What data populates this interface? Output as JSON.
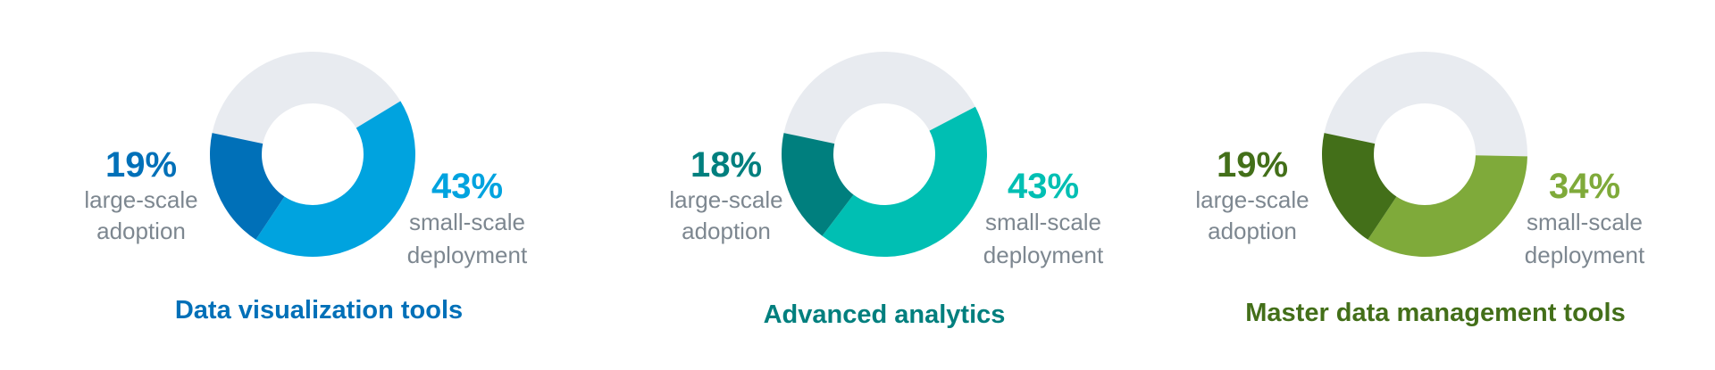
{
  "chart_data": [
    {
      "type": "pie",
      "title": "Data visualization tools",
      "slices": [
        {
          "name": "large-scale adoption",
          "line1": "large-scale",
          "line2": "adoption",
          "value": 19,
          "label": "19%",
          "color": "#0070b8"
        },
        {
          "name": "small-scale deployment",
          "line1": "small-scale",
          "line2": "deployment",
          "value": 43,
          "label": "43%",
          "color": "#00a3df"
        },
        {
          "name": "remainder",
          "value": 38,
          "color": "#e8ebf0"
        }
      ],
      "title_color": "#0070b8"
    },
    {
      "type": "pie",
      "title": "Advanced analytics",
      "slices": [
        {
          "name": "large-scale adoption",
          "line1": "large-scale",
          "line2": "adoption",
          "value": 18,
          "label": "18%",
          "color": "#007f7e"
        },
        {
          "name": "small-scale deployment",
          "line1": "small-scale",
          "line2": "deployment",
          "value": 43,
          "label": "43%",
          "color": "#00bfb3"
        },
        {
          "name": "remainder",
          "value": 39,
          "color": "#e8ebf0"
        }
      ],
      "title_color": "#007f7e"
    },
    {
      "type": "pie",
      "title": "Master data management tools",
      "slices": [
        {
          "name": "large-scale adoption",
          "line1": "large-scale",
          "line2": "adoption",
          "value": 19,
          "label": "19%",
          "color": "#436f19"
        },
        {
          "name": "small-scale deployment",
          "line1": "small-scale",
          "line2": "deployment",
          "value": 34,
          "label": "34%",
          "color": "#7faa3a"
        },
        {
          "name": "remainder",
          "value": 47,
          "color": "#e8ebf0"
        }
      ],
      "title_color": "#436f19"
    }
  ]
}
